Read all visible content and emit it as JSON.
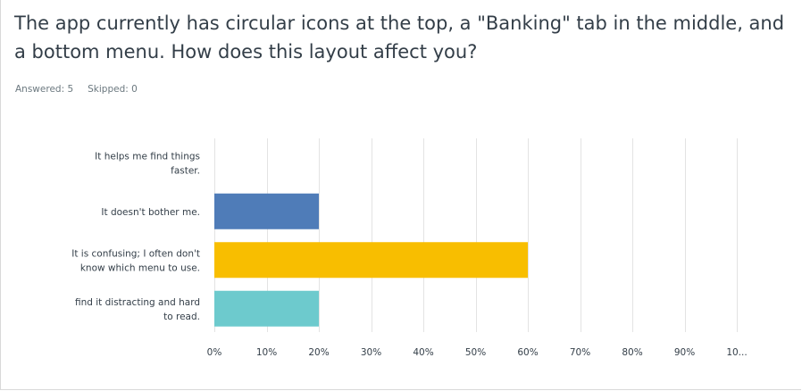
{
  "question": {
    "title": "The app currently has circular icons at the top, a \"Banking\" tab in the middle, and a bottom menu. How does this layout affect you?"
  },
  "stats": {
    "answered_label": "Answered:",
    "answered": "5",
    "skipped_label": "Skipped:",
    "skipped": "0"
  },
  "chart_data": {
    "type": "bar",
    "orientation": "horizontal",
    "categories": [
      [
        "It helps me find things",
        "faster."
      ],
      [
        "It doesn't bother me."
      ],
      [
        "It is confusing; I often don't",
        "know which menu to use."
      ],
      [
        "find it distracting and hard",
        "to read."
      ]
    ],
    "values": [
      0,
      20,
      60,
      20
    ],
    "unit": "%",
    "colors": [
      "#4f7cb8",
      "#4f7cb8",
      "#f8be00",
      "#6dcacd"
    ],
    "xlim": [
      0,
      100
    ],
    "xticks": [
      "0%",
      "10%",
      "20%",
      "30%",
      "40%",
      "50%",
      "60%",
      "70%",
      "80%",
      "90%",
      "10..."
    ],
    "grid": true,
    "legend": "none"
  }
}
